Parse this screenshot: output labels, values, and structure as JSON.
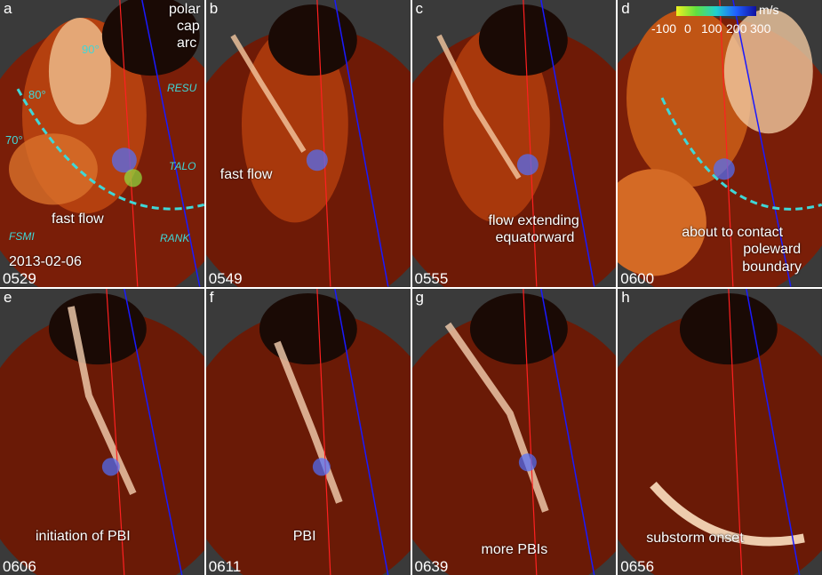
{
  "panels": [
    {
      "letter": "a",
      "time": "0529"
    },
    {
      "letter": "b",
      "time": "0549"
    },
    {
      "letter": "c",
      "time": "0555"
    },
    {
      "letter": "d",
      "time": "0600"
    },
    {
      "letter": "e",
      "time": "0606"
    },
    {
      "letter": "f",
      "time": "0611"
    },
    {
      "letter": "g",
      "time": "0639"
    },
    {
      "letter": "h",
      "time": "0656"
    }
  ],
  "annotations": {
    "polar_cap": "polar",
    "polar_cap2": "cap",
    "polar_cap3": "arc",
    "fast_flow_a": "fast flow",
    "date": "2013-02-06",
    "fast_flow_b": "fast flow",
    "flow_extending_1": "flow extending",
    "flow_extending_2": "equatorward",
    "contact_1": "about to contact",
    "contact_2": "poleward",
    "contact_3": "boundary",
    "initiation": "initiation of PBI",
    "pbi": "PBI",
    "more_pbis": "more PBIs",
    "onset": "substorm onset"
  },
  "stations": {
    "resu": "RESU",
    "talo": "TALO",
    "rank": "RANK",
    "fsmi": "FSMI"
  },
  "latitudes": {
    "l90": "90°",
    "l80": "80°",
    "l70": "70°"
  },
  "colorbar": {
    "unit": "m/s",
    "ticks": [
      "-100",
      "0",
      "100",
      "200",
      "300"
    ],
    "colors": [
      "#f0f020",
      "#60e040",
      "#20d0d0",
      "#2060ff",
      "#1010a0"
    ]
  }
}
